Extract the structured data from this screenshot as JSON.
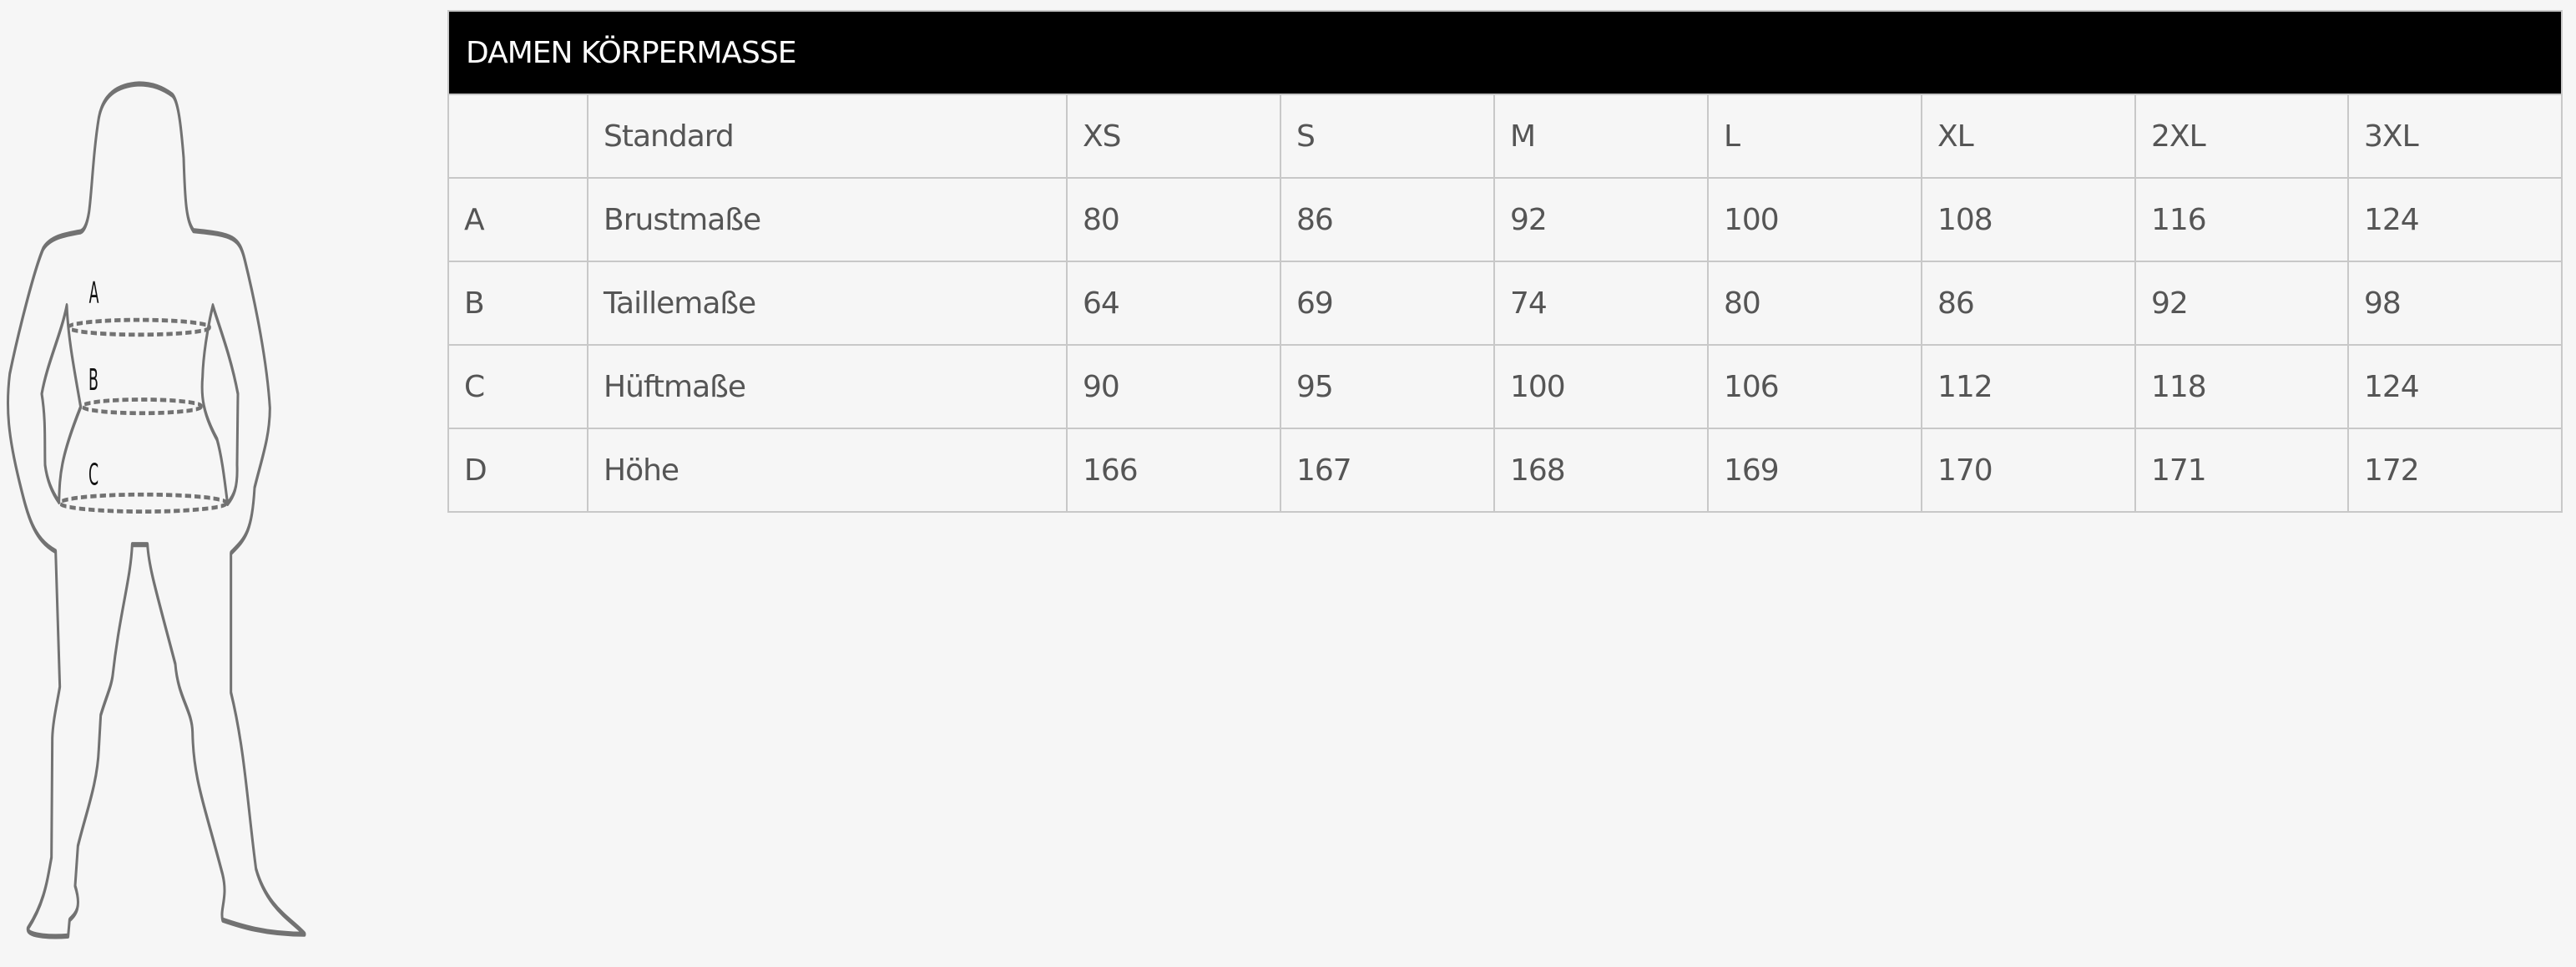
{
  "title": "DAMEN KÖRPERMASSE",
  "figure": {
    "labels": [
      "A",
      "B",
      "C"
    ]
  },
  "header": [
    "",
    "Standard",
    "XS",
    "S",
    "M",
    "L",
    "XL",
    "2XL",
    "3XL"
  ],
  "rows": [
    [
      "A",
      "Brustmaße",
      "80",
      "86",
      "92",
      "100",
      "108",
      "116",
      "124"
    ],
    [
      "B",
      "Taillemaße",
      "64",
      "69",
      "74",
      "80",
      "86",
      "92",
      "98"
    ],
    [
      "C",
      "Hüftmaße",
      "90",
      "95",
      "100",
      "106",
      "112",
      "118",
      "124"
    ],
    [
      "D",
      "Höhe",
      "166",
      "167",
      "168",
      "169",
      "170",
      "171",
      "172"
    ]
  ],
  "colors": {
    "header_bg": "#000000",
    "outline": "#727272",
    "border": "#c8c8c8"
  }
}
